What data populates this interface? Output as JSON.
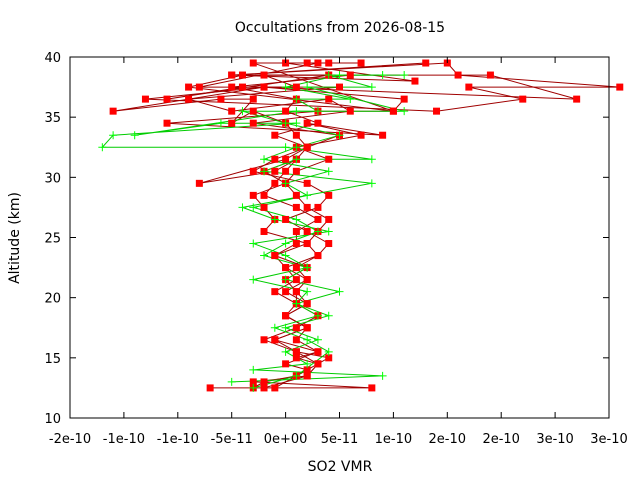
{
  "chart_data": {
    "type": "line",
    "title": "Occultations from 2026-08-15",
    "xlabel": "SO2 VMR",
    "ylabel": "Altitude (km)",
    "xlim": [
      -2e-10,
      3e-10
    ],
    "ylim": [
      10,
      40
    ],
    "x_ticks": [
      -2e-10,
      -1.5e-10,
      -1e-10,
      -5e-11,
      0,
      5e-11,
      1e-10,
      1.5e-10,
      2e-10,
      2.5e-10,
      3e-10
    ],
    "x_tick_labels": [
      "-2e-10",
      "-1e-10",
      "-1e-10",
      "-5e-11",
      "0e+00",
      "5e-11",
      "1e-10",
      "2e-10",
      "2e-10",
      "3e-10",
      "3e-10"
    ],
    "y_ticks": [
      10,
      15,
      20,
      25,
      30,
      35,
      40
    ],
    "y_tick_labels": [
      "10",
      "15",
      "20",
      "25",
      "30",
      "35",
      "40"
    ],
    "grid": false,
    "legend": "none",
    "series": [
      {
        "color": "#ff0000",
        "line_color": "#a00000",
        "marker": "square",
        "x": [
          -7e-11,
          8e-11,
          -3e-11,
          2e-11,
          3e-11,
          1e-11,
          3e-11,
          -1e-11,
          2e-11,
          0,
          1e-11,
          1e-11,
          0,
          2e-11,
          -1e-11,
          1e-11,
          1e-11,
          3e-11,
          1e-11,
          -2e-11,
          -1e-11,
          0,
          1e-11,
          -1e-11,
          -8e-11,
          0,
          2e-11,
          1e-11,
          0,
          -3e-11,
          -5e-11,
          -3e-11,
          -6e-11,
          -1.6e-10,
          -2e-11,
          -1.3e-10,
          1.4e-10,
          2.2e-10,
          1.7e-10,
          3.1e-10,
          1.6e-10,
          1.5e-10,
          -5e-11,
          1.3e-10
        ],
        "y": [
          12.5,
          12.5,
          13,
          13.5,
          14.5,
          15,
          15.5,
          16.5,
          17.5,
          18.5,
          19.5,
          20.5,
          21.5,
          22.5,
          23.5,
          24.5,
          25.5,
          26.5,
          27.5,
          28.5,
          29.5,
          30.5,
          31.5,
          30.5,
          29.5,
          31.5,
          32.5,
          33.5,
          34.5,
          35.5,
          34.5,
          36.5,
          36.5,
          35.5,
          37.5,
          36.5,
          35.5,
          36.5,
          37.5,
          37.5,
          38.5,
          39.5,
          38.5,
          39.5
        ]
      },
      {
        "color": "#ff0000",
        "line_color": "#a00000",
        "marker": "square",
        "x": [
          -3e-11,
          -2e-11,
          1e-11,
          2e-11,
          0,
          3e-11,
          1e-11,
          2e-11,
          0,
          2e-11,
          0,
          2e-11,
          1e-11,
          3e-11,
          2e-11,
          3e-11,
          4e-11,
          2e-11,
          1e-11,
          0,
          1e-11,
          4e-11,
          1e-11,
          7e-11,
          2e-11,
          9e-11,
          -1.1e-10,
          3e-11,
          1e-10,
          1.1e-10,
          -2e-11,
          2.7e-10,
          1.9e-10,
          -5e-11,
          1.2e-10,
          0,
          4e-11
        ],
        "y": [
          12.5,
          13,
          13.5,
          14,
          14.5,
          15.5,
          16.5,
          17.5,
          18.5,
          19.5,
          20.5,
          21.5,
          22.5,
          23.5,
          24.5,
          25.5,
          26.5,
          27.5,
          28.5,
          29.5,
          30.5,
          31.5,
          32.5,
          33.5,
          34.5,
          33.5,
          34.5,
          35.5,
          35.5,
          36.5,
          37.5,
          36.5,
          38.5,
          38.5,
          38,
          39.5,
          39.5
        ]
      },
      {
        "color": "#ff0000",
        "line_color": "#a00000",
        "marker": "square",
        "x": [
          -1e-11,
          1e-11,
          4e-11,
          1e-11,
          -1e-11,
          2e-11,
          0,
          2e-11,
          1e-11,
          2e-11,
          0,
          3e-11,
          4e-11,
          2e-11,
          0,
          3e-11,
          4e-11,
          2e-11,
          -3e-11,
          -1e-11,
          2e-11,
          5e-11,
          -3e-11,
          6e-11,
          4e-11,
          -5e-11,
          -9e-11,
          5e-11,
          -4e-11,
          -1.1e-10,
          4e-11,
          -4e-11,
          -9e-11,
          1e-10,
          -3e-11,
          2e-11
        ],
        "y": [
          12.5,
          13.5,
          15,
          15.5,
          16.5,
          17.5,
          18.5,
          19.5,
          20.5,
          21.5,
          22.5,
          23.5,
          24.5,
          25.5,
          26.5,
          27.5,
          28.5,
          29.5,
          30.5,
          31.5,
          32.5,
          33.5,
          34.5,
          35.5,
          36.5,
          35.5,
          36.5,
          37.5,
          37.5,
          36.5,
          38.5,
          38.5,
          37.5,
          35.5,
          39.5,
          39.5
        ]
      },
      {
        "color": "#ff0000",
        "line_color": "#a00000",
        "marker": "square",
        "x": [
          -2e-11,
          2e-11,
          3e-11,
          1e-11,
          -2e-11,
          1e-11,
          3e-11,
          1e-11,
          -1e-11,
          1e-11,
          0,
          -1e-11,
          2e-11,
          -2e-11,
          -1e-11,
          -2e-11,
          -3e-11,
          0,
          -2e-11,
          1e-11,
          2e-11,
          -1e-11,
          3e-11,
          0,
          1e-11,
          -5e-11,
          6e-11,
          -2e-11,
          1e-11,
          -8e-11,
          3e-11,
          7e-11
        ],
        "y": [
          12.5,
          13.5,
          14.5,
          15.5,
          16.5,
          17.5,
          18.5,
          19.5,
          20.5,
          21.5,
          22.5,
          23.5,
          24.5,
          25.5,
          26.5,
          27.5,
          28.5,
          29.5,
          30.5,
          31.5,
          32.5,
          33.5,
          34.5,
          35.5,
          36.5,
          37.5,
          38.5,
          38.5,
          37.5,
          37.5,
          39.5,
          39.5
        ]
      },
      {
        "color": "#00ff00",
        "line_color": "#00cc00",
        "marker": "plus",
        "x": [
          -5e-11,
          9e-11,
          -3e-11,
          2e-11,
          0,
          3e-11,
          0,
          4e-11,
          1e-11,
          2e-11,
          -3e-11,
          2e-11,
          0,
          -3e-11,
          4e-11,
          -1e-11,
          -4e-11,
          8e-11,
          -2e-11,
          1e-11,
          8e-11,
          0,
          -1.7e-10,
          -1.6e-10,
          1e-11,
          -6e-11,
          -1.4e-10,
          1e-11,
          1.1e-10,
          2e-11,
          8e-11,
          4e-11,
          1.1e-10
        ],
        "y": [
          13,
          13.5,
          14,
          14.5,
          15.5,
          16.5,
          17.5,
          18.5,
          19.5,
          20.5,
          21.5,
          22.5,
          23.5,
          24.5,
          25.5,
          26.5,
          27.5,
          29.5,
          30.5,
          31.5,
          31.5,
          32.5,
          32.5,
          33.5,
          34.5,
          34.5,
          33.5,
          35.5,
          35.5,
          37.5,
          37.5,
          38.5,
          38.5
        ]
      },
      {
        "color": "#00ff00",
        "line_color": "#00cc00",
        "marker": "plus",
        "x": [
          -3e-11,
          1e-11,
          4e-11,
          2e-11,
          -1e-11,
          3e-11,
          1e-11,
          5e-11,
          0,
          2e-11,
          -2e-11,
          0,
          3e-11,
          1e-11,
          -3e-11,
          2e-11,
          0,
          4e-11,
          -2e-11,
          1e-11,
          5e-11,
          0,
          -4e-11,
          3e-11,
          1e-11,
          6e-11,
          0,
          5e-11,
          9e-11
        ],
        "y": [
          12.5,
          13.5,
          15.5,
          16.5,
          17.5,
          18.5,
          19.5,
          20.5,
          21.5,
          22.5,
          23.5,
          24.5,
          25.5,
          26.5,
          27.5,
          28.5,
          29.5,
          30.5,
          31.5,
          32.5,
          33.5,
          34.5,
          35.5,
          35.5,
          36.5,
          36.5,
          37.5,
          38.5,
          38.5
        ]
      }
    ]
  }
}
